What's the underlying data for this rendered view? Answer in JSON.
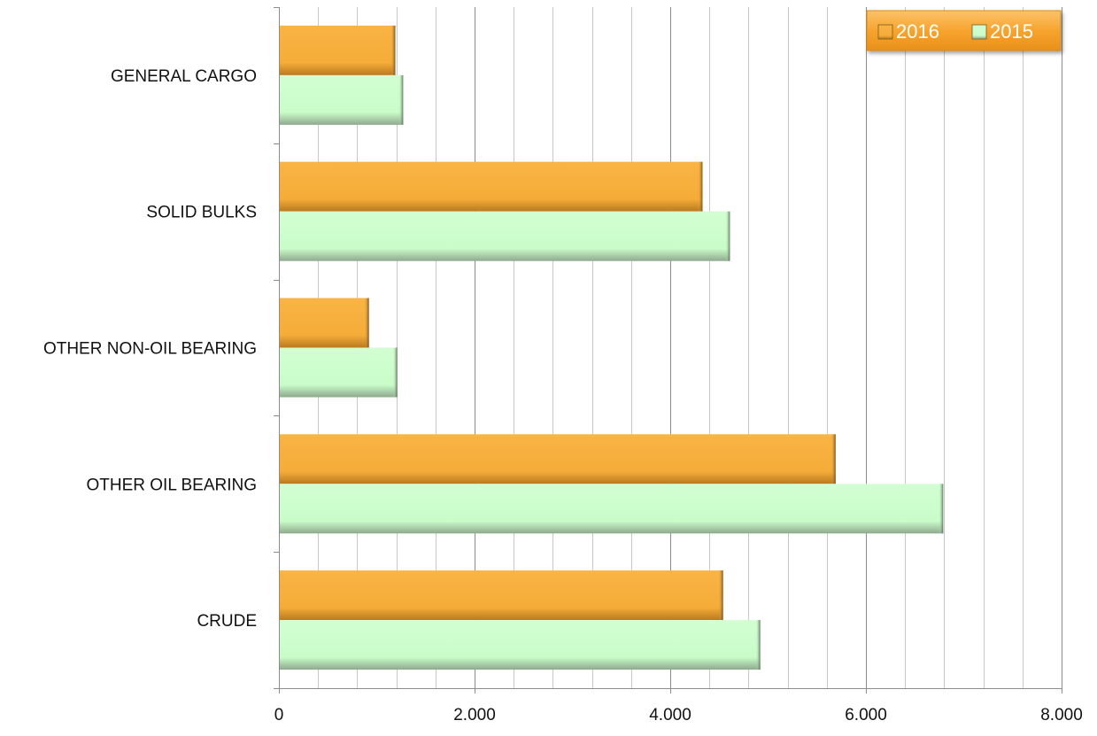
{
  "chart_data": {
    "type": "bar",
    "orientation": "horizontal",
    "categories": [
      "GENERAL CARGO",
      "SOLID BULKS",
      "OTHER NON-OIL BEARING",
      "OTHER OIL BEARING",
      "CRUDE"
    ],
    "series": [
      {
        "name": "2016",
        "color": "#F6AE3A",
        "values": [
          1190,
          4330,
          920,
          5690,
          4540
        ]
      },
      {
        "name": "2015",
        "color": "#CCFFCC",
        "values": [
          1270,
          4610,
          1210,
          6790,
          4920
        ]
      }
    ],
    "xlim": [
      0,
      8000
    ],
    "xticks": [
      0,
      2000,
      4000,
      6000,
      8000
    ],
    "xtick_labels": [
      "0",
      "2.000",
      "4.000",
      "6.000",
      "8.000"
    ],
    "minor_gridlines_per_major": 5,
    "grid": true,
    "legend": {
      "position": "top-right",
      "entries": [
        "2016",
        "2015"
      ],
      "background": "#F7A42E"
    },
    "title": "",
    "xlabel": "",
    "ylabel": ""
  }
}
